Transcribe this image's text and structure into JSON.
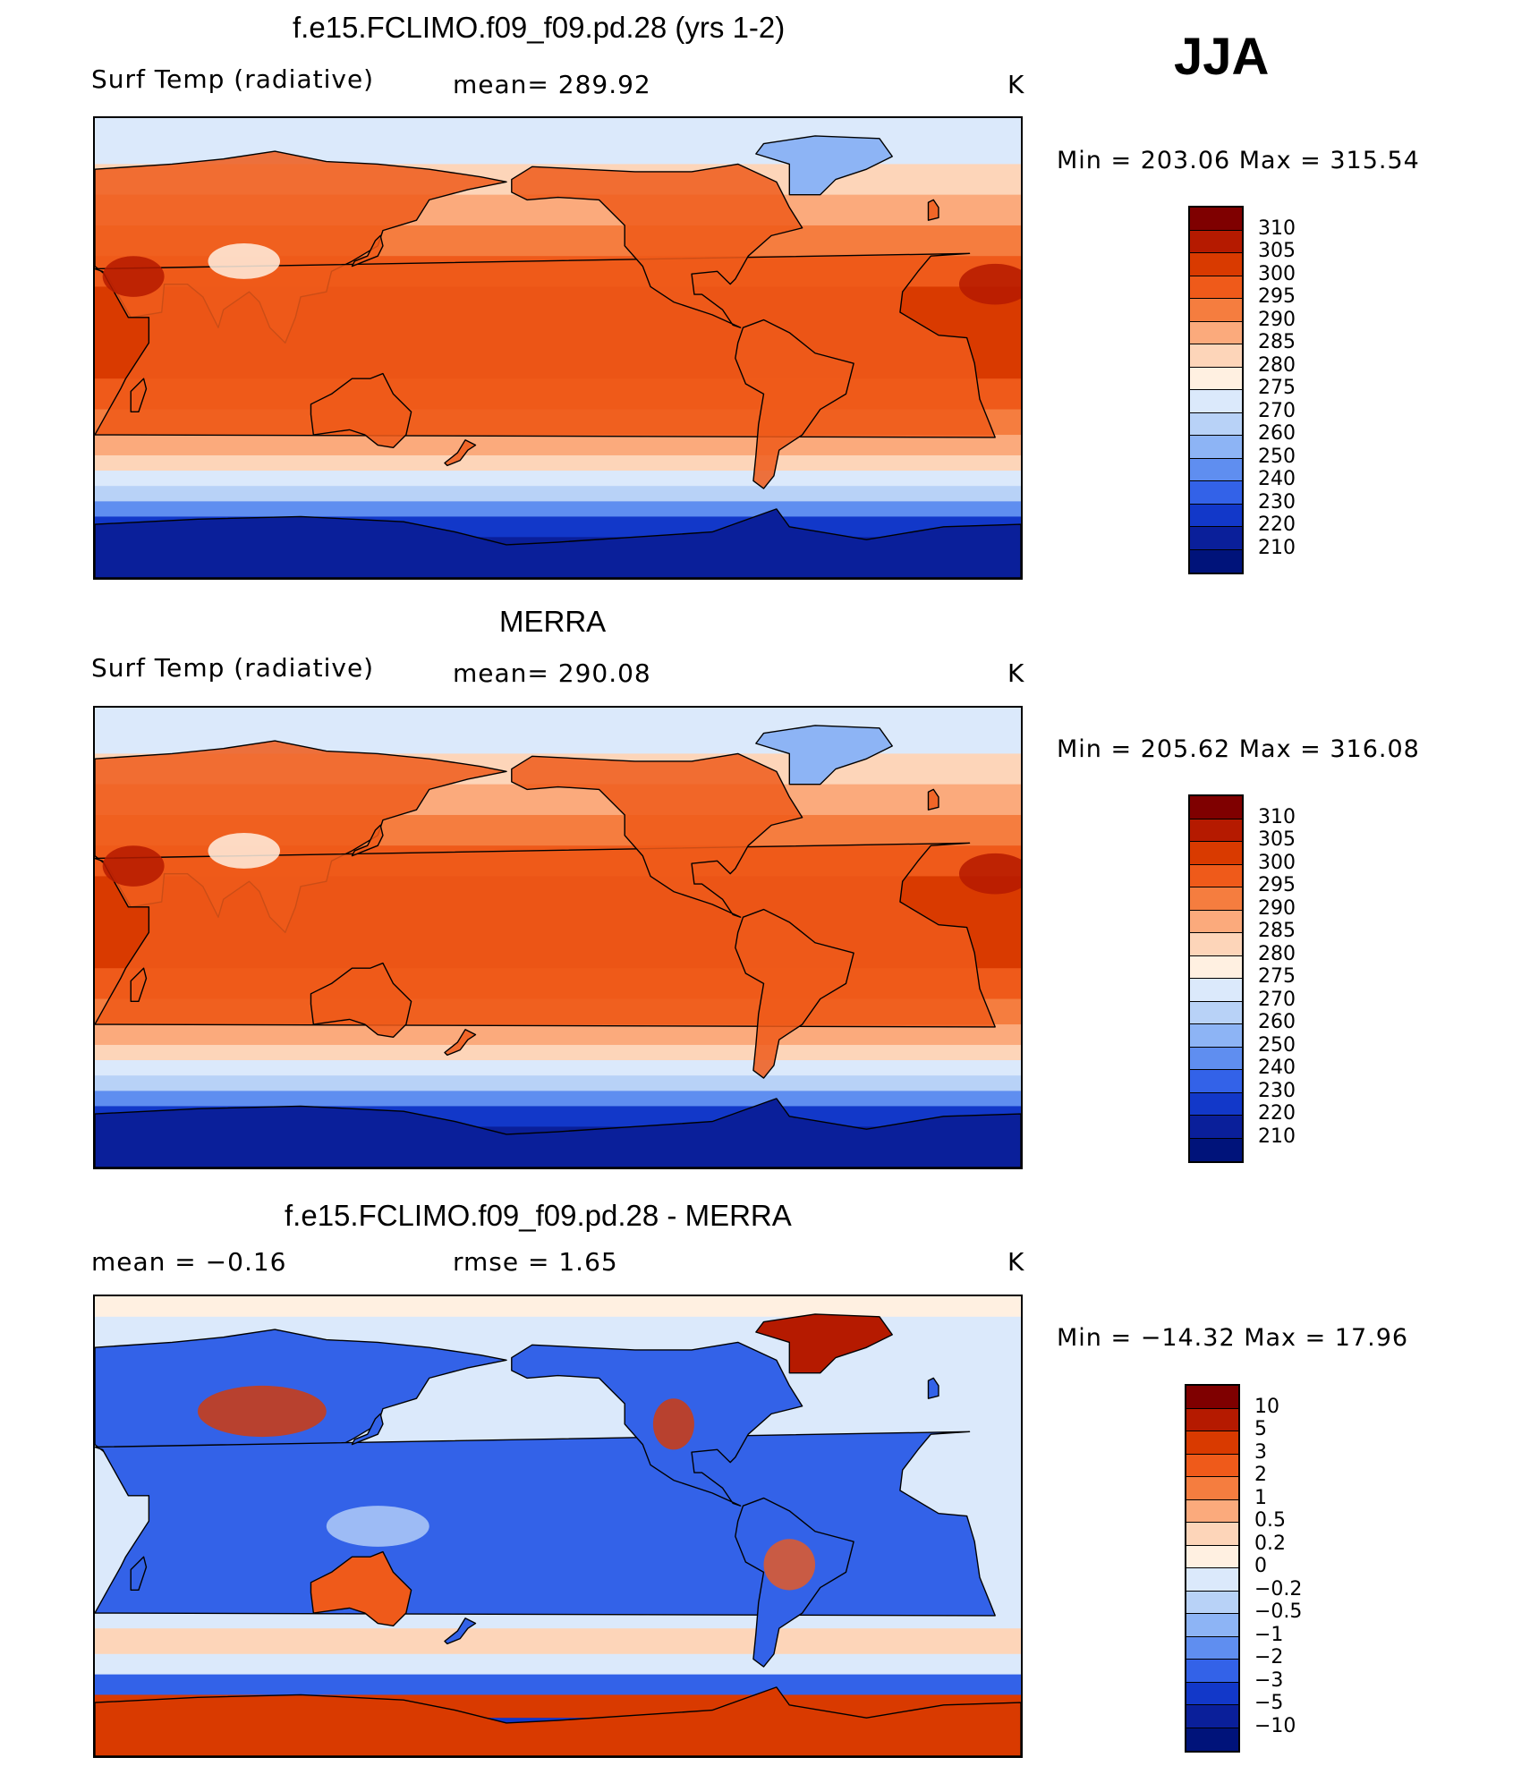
{
  "season": "JJA",
  "panels": [
    {
      "id": "model",
      "title": "f.e15.FCLIMO.f09_f09.pd.28 (yrs 1-2)",
      "left_label": "Surf Temp (radiative)",
      "center_label": "mean= 289.92",
      "units": "K",
      "minmax": "Min = 203.06 Max = 315.54",
      "colorbar": {
        "labels": [
          "310",
          "305",
          "300",
          "295",
          "290",
          "285",
          "280",
          "275",
          "270",
          "260",
          "250",
          "240",
          "230",
          "220",
          "210"
        ],
        "colors": [
          "#7f0000",
          "#b51a00",
          "#d93a00",
          "#ef5a1a",
          "#f57d3f",
          "#fbaa7c",
          "#fdd5b9",
          "#fff0e1",
          "#dbe9fb",
          "#b8d2f7",
          "#8db4f5",
          "#5f8ef0",
          "#3362e8",
          "#1238c9",
          "#0a1f9a",
          "#00137a"
        ]
      },
      "map_style": "absolute"
    },
    {
      "id": "obs",
      "title": "MERRA",
      "left_label": "Surf Temp (radiative)",
      "center_label": "mean= 290.08",
      "units": "K",
      "minmax": "Min = 205.62 Max = 316.08",
      "colorbar": {
        "labels": [
          "310",
          "305",
          "300",
          "295",
          "290",
          "285",
          "280",
          "275",
          "270",
          "260",
          "250",
          "240",
          "230",
          "220",
          "210"
        ],
        "colors": [
          "#7f0000",
          "#b51a00",
          "#d93a00",
          "#ef5a1a",
          "#f57d3f",
          "#fbaa7c",
          "#fdd5b9",
          "#fff0e1",
          "#dbe9fb",
          "#b8d2f7",
          "#8db4f5",
          "#5f8ef0",
          "#3362e8",
          "#1238c9",
          "#0a1f9a",
          "#00137a"
        ]
      },
      "map_style": "absolute"
    },
    {
      "id": "diff",
      "title": "f.e15.FCLIMO.f09_f09.pd.28 - MERRA",
      "left_label": "mean =   −0.16",
      "center_label": "rmse =    1.65",
      "units": "K",
      "minmax": "Min = −14.32 Max =  17.96",
      "colorbar": {
        "labels": [
          "10",
          "5",
          "3",
          "2",
          "1",
          "0.5",
          "0.2",
          "0",
          "−0.2",
          "−0.5",
          "−1",
          "−2",
          "−3",
          "−5",
          "−10"
        ],
        "colors": [
          "#7f0000",
          "#b51a00",
          "#d93a00",
          "#ef5a1a",
          "#f57d3f",
          "#fbaa7c",
          "#fdd5b9",
          "#fff0e1",
          "#dbe9fb",
          "#b8d2f7",
          "#8db4f5",
          "#5f8ef0",
          "#3362e8",
          "#1238c9",
          "#0a1f9a",
          "#00137a"
        ]
      },
      "map_style": "difference"
    }
  ]
}
